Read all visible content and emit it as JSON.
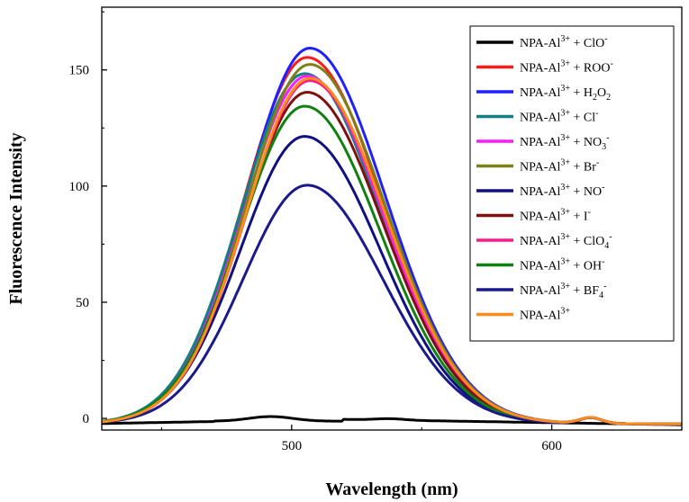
{
  "chart_data": {
    "type": "line",
    "title": "",
    "xlabel": "Wavelength (nm)",
    "ylabel": "Fluorescence Intensity",
    "xlim": [
      427,
      650
    ],
    "ylim": [
      -5,
      177
    ],
    "x_ticks": [
      500,
      600
    ],
    "y_ticks": [
      0,
      50,
      100,
      150
    ],
    "grid": false,
    "legend_position": "top-right",
    "series": [
      {
        "name": "NPA-Al3+ + ClO-",
        "label_parts": [
          [
            "NPA-Al",
            ""
          ],
          [
            "3+",
            "sup"
          ],
          [
            " + ClO",
            ""
          ],
          [
            "-",
            "sup"
          ]
        ],
        "color": "#000000",
        "peak": 0,
        "baseline_flat": true
      },
      {
        "name": "NPA-Al3+ + ROO-",
        "label_parts": [
          [
            "NPA-Al",
            ""
          ],
          [
            "3+",
            "sup"
          ],
          [
            " + ROO",
            ""
          ],
          [
            "-",
            "sup"
          ]
        ],
        "color": "#ff1a1a",
        "peak": 157
      },
      {
        "name": "NPA-Al3+ + H2O2",
        "label_parts": [
          [
            "NPA-Al",
            ""
          ],
          [
            "3+",
            "sup"
          ],
          [
            " + H",
            ""
          ],
          [
            "2",
            "sub"
          ],
          [
            "O",
            ""
          ],
          [
            "2",
            "sub"
          ]
        ],
        "color": "#1f1fff",
        "peak": 161
      },
      {
        "name": "NPA-Al3+ + Cl-",
        "label_parts": [
          [
            "NPA-Al",
            ""
          ],
          [
            "3+",
            "sup"
          ],
          [
            " + Cl",
            ""
          ],
          [
            "-",
            "sup"
          ]
        ],
        "color": "#108080",
        "peak": 150
      },
      {
        "name": "NPA-Al3+ + NO3-",
        "label_parts": [
          [
            "NPA-Al",
            ""
          ],
          [
            "3+",
            "sup"
          ],
          [
            " + NO",
            ""
          ],
          [
            "3",
            "sub"
          ],
          [
            "-",
            "sup"
          ]
        ],
        "color": "#ff1aff",
        "peak": 149
      },
      {
        "name": "NPA-Al3+ + Br-",
        "label_parts": [
          [
            "NPA-Al",
            ""
          ],
          [
            "3+",
            "sup"
          ],
          [
            " + Br",
            ""
          ],
          [
            "-",
            "sup"
          ]
        ],
        "color": "#80801a",
        "peak": 154
      },
      {
        "name": "NPA-Al3+ + NO-",
        "label_parts": [
          [
            "NPA-Al",
            ""
          ],
          [
            "3+",
            "sup"
          ],
          [
            " + NO",
            ""
          ],
          [
            "-",
            "sup"
          ]
        ],
        "color": "#101080",
        "peak": 123
      },
      {
        "name": "NPA-Al3+ + I-",
        "label_parts": [
          [
            "NPA-Al",
            ""
          ],
          [
            "3+",
            "sup"
          ],
          [
            " + I",
            ""
          ],
          [
            "-",
            "sup"
          ]
        ],
        "color": "#801010",
        "peak": 142
      },
      {
        "name": "NPA-Al3+ + ClO4-",
        "label_parts": [
          [
            "NPA-Al",
            ""
          ],
          [
            "3+",
            "sup"
          ],
          [
            " + ClO",
            ""
          ],
          [
            "4",
            "sub"
          ],
          [
            "-",
            "sup"
          ]
        ],
        "color": "#ff1a8c",
        "peak": 147
      },
      {
        "name": "NPA-Al3+ + OH-",
        "label_parts": [
          [
            "NPA-Al",
            ""
          ],
          [
            "3+",
            "sup"
          ],
          [
            " + OH",
            ""
          ],
          [
            "-",
            "sup"
          ]
        ],
        "color": "#108010",
        "peak": 136
      },
      {
        "name": "NPA-Al3+ + BF4-",
        "label_parts": [
          [
            "NPA-Al",
            ""
          ],
          [
            "3+",
            "sup"
          ],
          [
            " + BF",
            ""
          ],
          [
            "4",
            "sub"
          ],
          [
            "-",
            "sup"
          ]
        ],
        "color": "#1a1a8c",
        "peak": 102
      },
      {
        "name": "NPA-Al3+",
        "label_parts": [
          [
            "NPA-Al",
            ""
          ],
          [
            "3+",
            "sup"
          ]
        ],
        "color": "#ff8c1a",
        "peak": 148
      }
    ]
  }
}
